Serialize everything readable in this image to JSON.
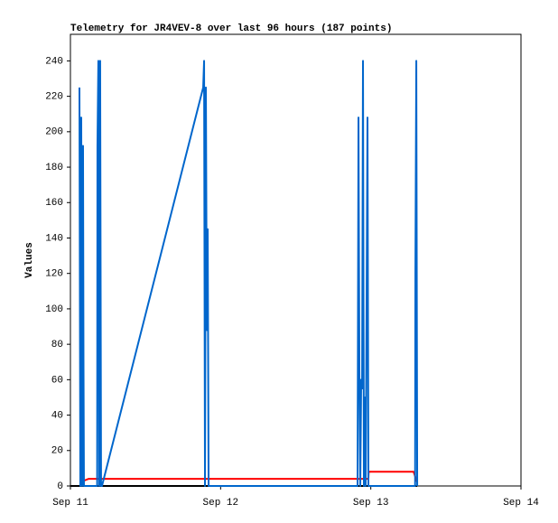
{
  "chart_data": {
    "type": "line",
    "title": "Telemetry for JR4VEV-8 over last 96 hours (187 points)",
    "y_label": "Values",
    "xlim": [
      0,
      3
    ],
    "xticks": [
      {
        "value": 0,
        "label": "Sep 11"
      },
      {
        "value": 1,
        "label": "Sep 12"
      },
      {
        "value": 2,
        "label": "Sep 13"
      },
      {
        "value": 3,
        "label": "Sep 14"
      }
    ],
    "ylim": [
      0,
      255
    ],
    "yticks": [
      0,
      20,
      40,
      60,
      80,
      100,
      120,
      140,
      160,
      180,
      200,
      220,
      240
    ],
    "series": [
      {
        "color": "#000000",
        "x": [
          0,
          2.309
        ],
        "values": [
          0,
          0
        ]
      },
      {
        "color": "#ff0000",
        "x": [
          0.072,
          0.09,
          0.12,
          1.984,
          1.986,
          2.285,
          2.309
        ],
        "values": [
          4,
          3,
          4,
          4,
          8,
          8,
          2
        ]
      },
      {
        "color": "#0066cc",
        "x": [
          0.06,
          0.066,
          0.072,
          0.078,
          0.084,
          0.087,
          0.09,
          0.178,
          0.18,
          0.186,
          0.192,
          0.198,
          0.204,
          0.21,
          0.884,
          0.89,
          0.896,
          0.902,
          0.908,
          0.914,
          0.92,
          1.912,
          1.918,
          1.924,
          1.93,
          1.936,
          1.942,
          1.948,
          1.954,
          1.96,
          1.966,
          1.978,
          1.984,
          2.295,
          2.297,
          2.303,
          2.309
        ],
        "values": [
          225,
          0,
          208,
          0,
          192,
          72,
          0,
          0,
          192,
          240,
          0,
          240,
          0,
          0,
          225,
          240,
          0,
          225,
          88,
          145,
          0,
          0,
          208,
          65,
          0,
          60,
          55,
          240,
          0,
          50,
          0,
          208,
          0,
          0,
          120,
          240,
          0
        ]
      }
    ]
  }
}
